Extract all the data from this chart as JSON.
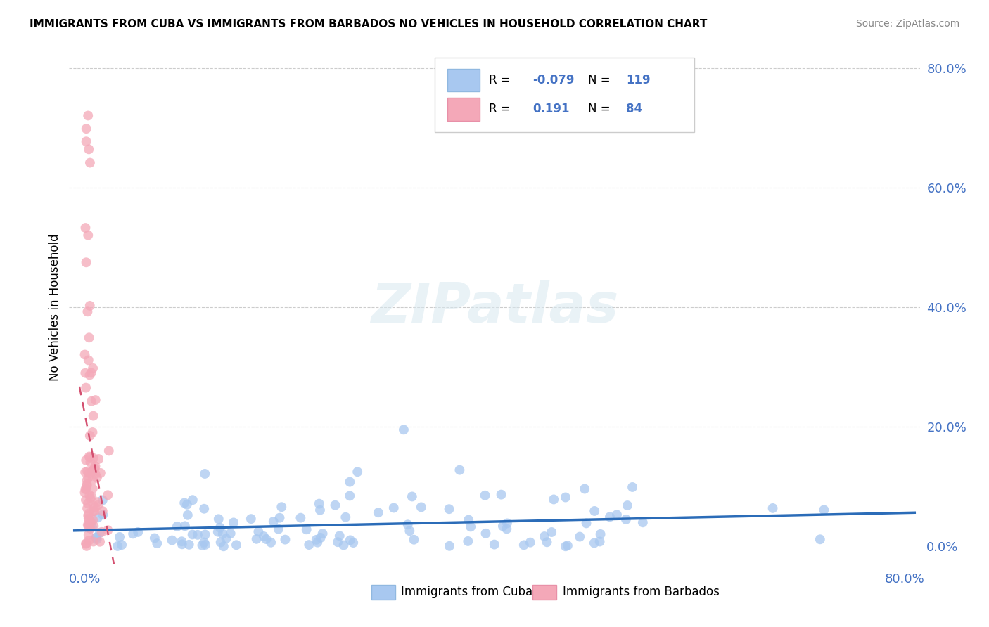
{
  "title": "IMMIGRANTS FROM CUBA VS IMMIGRANTS FROM BARBADOS NO VEHICLES IN HOUSEHOLD CORRELATION CHART",
  "source": "Source: ZipAtlas.com",
  "ylabel": "No Vehicles in Household",
  "xlim": [
    0.0,
    0.8
  ],
  "ylim": [
    0.0,
    0.8
  ],
  "cuba_R": -0.079,
  "cuba_N": 119,
  "barbados_R": 0.191,
  "barbados_N": 84,
  "cuba_color": "#a8c8f0",
  "barbados_color": "#f4a8b8",
  "cuba_line_color": "#2b6cb8",
  "barbados_line_color": "#d45070",
  "watermark_text": "ZIPatlas",
  "tick_color": "#4472c4",
  "title_color": "#000000",
  "source_color": "#888888"
}
